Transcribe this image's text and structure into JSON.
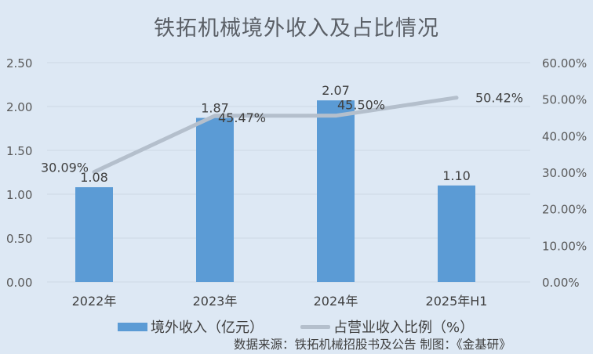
{
  "chart_data": {
    "type": "bar+line",
    "title": "铁拓机械境外收入及占比情况",
    "categories": [
      "2022年",
      "2023年",
      "2024年",
      "2025年H1"
    ],
    "series": [
      {
        "name": "境外收入（亿元）",
        "type": "bar",
        "axis": "left",
        "values": [
          1.08,
          1.87,
          2.07,
          1.1
        ],
        "labels": [
          "1.08",
          "1.87",
          "2.07",
          "1.10"
        ],
        "color": "#5b9bd5"
      },
      {
        "name": "占营业收入比例（%）",
        "type": "line",
        "axis": "right",
        "values": [
          30.09,
          45.47,
          45.5,
          50.42
        ],
        "labels": [
          "30.09%",
          "45.47%",
          "45.50%",
          "50.42%"
        ],
        "color": "#b4bfcc"
      }
    ],
    "left_axis": {
      "ylim": [
        0,
        2.5
      ],
      "ticks": [
        "0.00",
        "0.50",
        "1.00",
        "1.50",
        "2.00",
        "2.50"
      ]
    },
    "right_axis": {
      "ylim": [
        0,
        60
      ],
      "ticks": [
        "0.00%",
        "10.00%",
        "20.00%",
        "30.00%",
        "40.00%",
        "50.00%",
        "60.00%"
      ]
    },
    "grid": true,
    "legend_position": "bottom",
    "source": "数据来源：铁拓机械招股书及公告    制图：《金基研》"
  },
  "legend": {
    "bar": "境外收入（亿元）",
    "line": "占营业收入比例（%）"
  }
}
